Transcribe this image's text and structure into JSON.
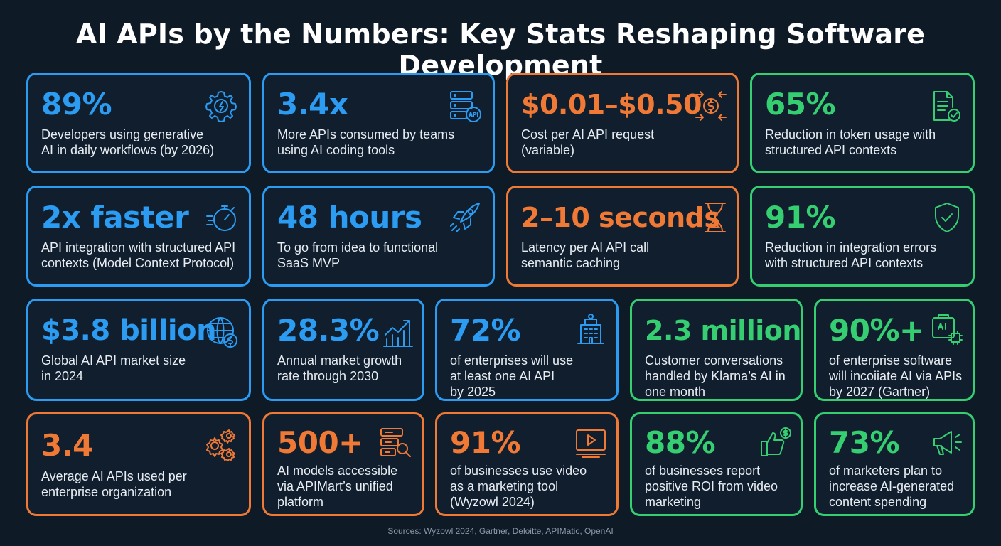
{
  "title": "AI APIs by the Numbers: Key Stats Reshaping Software Development",
  "cards": [
    {
      "stat": "89%",
      "desc": "Developers using generative\nAI in daily workflows (by 2026)",
      "icon": "gear-icon",
      "color": "#2b9cf2"
    },
    {
      "stat": "3.4x",
      "desc": "More APIs consumed by teams\nusing AI coding tools",
      "icon": "api-server-icon",
      "color": "#2b9cf2"
    },
    {
      "stat": "$0.01–$0.50",
      "desc": "Cost per AI API request\n(variable)",
      "icon": "dollar-arrows-icon",
      "color": "#f07a35"
    },
    {
      "stat": "65%",
      "desc": "Reduction in token usage with\nstructured API contexts",
      "icon": "document-check-icon",
      "color": "#35cf72"
    },
    {
      "stat": "2x faster",
      "desc": "API integration with structured API\ncontexts (Model Context Protocol)",
      "icon": "stopwatch-icon",
      "color": "#2b9cf2"
    },
    {
      "stat": "48 hours",
      "desc": "To go from idea to functional\nSaaS MVP",
      "icon": "rocket-icon",
      "color": "#2b9cf2"
    },
    {
      "stat": "2–10 seconds",
      "desc": "Latency per AI API call\nsemantic caching",
      "icon": "hourglass-icon",
      "color": "#f07a35"
    },
    {
      "stat": "91%",
      "desc": "Reduction in integration errors\nwith structured API contexts",
      "icon": "shield-check-icon",
      "color": "#35cf72"
    },
    {
      "stat": "$3.8 billion",
      "desc": "Global AI API market size\nin 2024",
      "icon": "globe-dollar-icon",
      "color": "#2b9cf2"
    },
    {
      "stat": "28.3%",
      "desc": "Annual market growth\nrate through 2030",
      "icon": "growth-chart-icon",
      "color": "#2b9cf2"
    },
    {
      "stat": "72%",
      "desc": "of enterprises will use\nat least one AI API\nby 2025",
      "icon": "office-building-icon",
      "color": "#2b9cf2"
    },
    {
      "stat": "2.3 million",
      "desc": "Customer conversations\nhandled by Klarna’s AI in\none month",
      "icon": "",
      "color": "#35cf72"
    },
    {
      "stat": "90%+",
      "desc": "of enterprise software\nwill incoiiate AI via APIs\nby 2027 (Gartner)",
      "icon": "ai-chip-icon",
      "color": "#35cf72"
    },
    {
      "stat": "3.4",
      "desc": "Average AI APIs used per\nenterprise organization",
      "icon": "gears-icon",
      "color": "#f07a35"
    },
    {
      "stat": "500+",
      "desc": "AI models accessible\nvia APIMart’s unified\nplatform",
      "icon": "database-search-icon",
      "color": "#f07a35"
    },
    {
      "stat": "91%",
      "desc": "of businesses use video\nas a marketing tool\n(Wyzowl 2024)",
      "icon": "video-play-icon",
      "color": "#f07a35"
    },
    {
      "stat": "88%",
      "desc": "of businesses report\npositive ROI from video\nmarketing",
      "icon": "thumbs-up-dollar-icon",
      "color": "#35cf72"
    },
    {
      "stat": "73%",
      "desc": "of marketers plan to\nincrease AI-generated\ncontent spending",
      "icon": "megaphone-icon",
      "color": "#35cf72"
    }
  ],
  "footer": "Sources: Wyzowl 2024, Gartner, Deloitte, APIMatic, OpenAI"
}
